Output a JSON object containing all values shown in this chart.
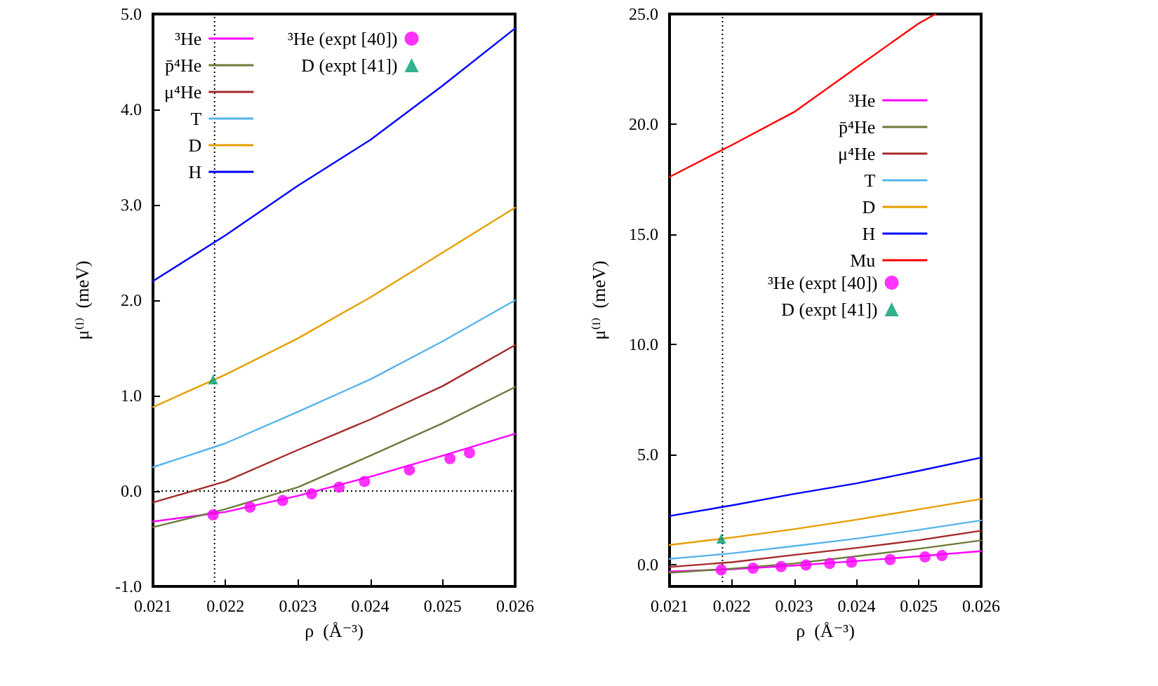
{
  "chart_data": [
    {
      "type": "line",
      "xlabel": "ρ  (Å⁻³)",
      "ylabel": "μ⁽ᴵ⁾  (meV)",
      "x": [
        0.021,
        0.022,
        0.023,
        0.024,
        0.025,
        0.026
      ],
      "series": [
        {
          "name": "³He",
          "color": "#ff00ff",
          "values": [
            -0.32,
            -0.22,
            -0.05,
            0.15,
            0.37,
            0.6
          ]
        },
        {
          "name": "p̄⁴He",
          "color": "#6b7b3a",
          "values": [
            -0.38,
            -0.19,
            0.04,
            0.37,
            0.71,
            1.09
          ]
        },
        {
          "name": "μ⁴He",
          "color": "#a52a2a",
          "values": [
            -0.12,
            0.1,
            0.43,
            0.75,
            1.1,
            1.53
          ]
        },
        {
          "name": "T",
          "color": "#56b4e9",
          "values": [
            0.25,
            0.5,
            0.83,
            1.17,
            1.57,
            2.0
          ]
        },
        {
          "name": "D",
          "color": "#e69f00",
          "values": [
            0.88,
            1.22,
            1.6,
            2.03,
            2.5,
            2.97
          ]
        },
        {
          "name": "H",
          "color": "#0000ff",
          "values": [
            2.2,
            2.68,
            3.2,
            3.68,
            4.25,
            4.85
          ]
        },
        {
          "name": "³He (expt [40])",
          "type": "scatter",
          "marker": "circle",
          "color": "#ff00ff",
          "x": [
            0.02183,
            0.02234,
            0.02279,
            0.02319,
            0.02357,
            0.02392,
            0.02454,
            0.0251,
            0.02537
          ],
          "values": [
            -0.25,
            -0.17,
            -0.1,
            -0.03,
            0.04,
            0.1,
            0.22,
            0.34,
            0.4
          ]
        },
        {
          "name": "D (expt [41])",
          "type": "scatter",
          "marker": "triangle",
          "color": "#009e73",
          "x": [
            0.02183
          ],
          "values": [
            1.17
          ]
        }
      ],
      "xlim": [
        0.021,
        0.026
      ],
      "xticks": [
        0.021,
        0.022,
        0.023,
        0.024,
        0.025,
        0.026
      ],
      "ylim": [
        -1,
        5
      ],
      "yticks": [
        {
          "value": -1,
          "label": "-1.0"
        },
        {
          "value": 0,
          "label": "0.0"
        },
        {
          "value": 1,
          "label": "1.0"
        },
        {
          "value": 2,
          "label": "2.0"
        },
        {
          "value": 3,
          "label": "3.0"
        },
        {
          "value": 4,
          "label": "4.0"
        },
        {
          "value": 5,
          "label": "5.0"
        }
      ],
      "ref_lines": [
        {
          "axis": "x",
          "value": 0.02185,
          "color": "#000000",
          "line_style": "dotted"
        },
        {
          "axis": "y",
          "value": 0,
          "color": "#000000",
          "line_style": "dotted"
        }
      ],
      "legend": "top left",
      "marker": "none",
      "line_style": "solid"
    },
    {
      "type": "line",
      "xlabel": "ρ  (Å⁻³)",
      "ylabel": "μ⁽ᴵ⁾  (meV)",
      "x": [
        0.021,
        0.022,
        0.023,
        0.024,
        0.025,
        0.026
      ],
      "series": [
        {
          "name": "³He",
          "color": "#ff00ff",
          "values": [
            -0.32,
            -0.22,
            -0.05,
            0.15,
            0.37,
            0.6
          ]
        },
        {
          "name": "p̄⁴He",
          "color": "#6b7b3a",
          "values": [
            -0.38,
            -0.19,
            0.04,
            0.37,
            0.71,
            1.09
          ]
        },
        {
          "name": "μ⁴He",
          "color": "#a52a2a",
          "values": [
            -0.12,
            0.1,
            0.43,
            0.75,
            1.1,
            1.53
          ]
        },
        {
          "name": "T",
          "color": "#56b4e9",
          "values": [
            0.25,
            0.5,
            0.83,
            1.17,
            1.57,
            2.0
          ]
        },
        {
          "name": "D",
          "color": "#e69f00",
          "values": [
            0.88,
            1.22,
            1.6,
            2.03,
            2.5,
            2.97
          ]
        },
        {
          "name": "H",
          "color": "#0000ff",
          "values": [
            2.2,
            2.68,
            3.2,
            3.68,
            4.25,
            4.85
          ]
        },
        {
          "name": "Mu",
          "color": "#ff0000",
          "x": [
            0.021,
            0.022,
            0.023,
            0.024,
            0.025,
            0.02527
          ],
          "values": [
            17.6,
            19.05,
            20.55,
            22.57,
            24.58,
            25.0
          ]
        },
        {
          "name": "³He (expt [40])",
          "type": "scatter",
          "marker": "circle",
          "color": "#ff00ff",
          "x": [
            0.02183,
            0.02234,
            0.02279,
            0.02319,
            0.02357,
            0.02392,
            0.02454,
            0.0251,
            0.02537
          ],
          "values": [
            -0.25,
            -0.17,
            -0.1,
            -0.03,
            0.04,
            0.1,
            0.22,
            0.34,
            0.4
          ]
        },
        {
          "name": "D (expt [41])",
          "type": "scatter",
          "marker": "triangle",
          "color": "#009e73",
          "x": [
            0.02183
          ],
          "values": [
            1.17
          ]
        }
      ],
      "xlim": [
        0.021,
        0.026
      ],
      "xticks": [
        0.021,
        0.022,
        0.023,
        0.024,
        0.025,
        0.026
      ],
      "ylim": [
        -1,
        25
      ],
      "yticks": [
        {
          "value": 0,
          "label": "0.0"
        },
        {
          "value": 5,
          "label": "5.0"
        },
        {
          "value": 10,
          "label": "10.0"
        },
        {
          "value": 15,
          "label": "15.0"
        },
        {
          "value": 20,
          "label": "20.0"
        },
        {
          "value": 25,
          "label": "25.0"
        }
      ],
      "ref_lines": [
        {
          "axis": "x",
          "value": 0.02185,
          "color": "#000000",
          "line_style": "dotted"
        }
      ],
      "legend": "right",
      "marker": "none",
      "line_style": "solid"
    }
  ]
}
